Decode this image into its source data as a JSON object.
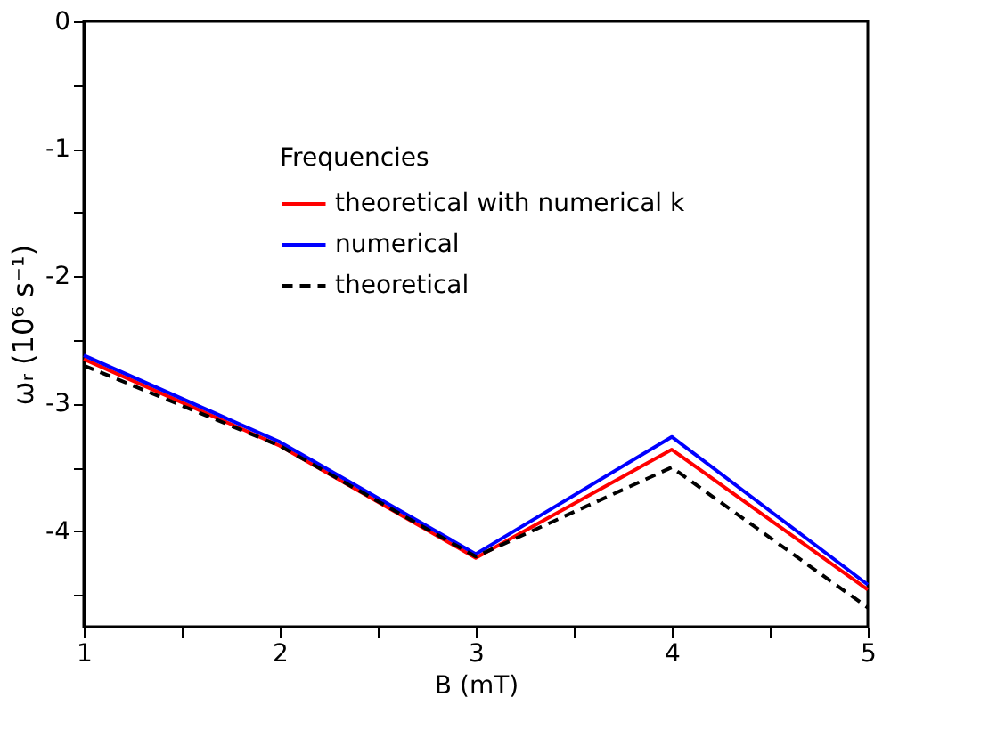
{
  "chart_data": {
    "type": "line",
    "xlabel": "B (mT)",
    "ylabel": "ωᵣ (10⁶ s⁻¹)",
    "legend_title": "Frequencies",
    "legend": "top",
    "grid": false,
    "marker": "none",
    "x": [
      1,
      2,
      3,
      4,
      5
    ],
    "xlim": [
      1,
      5
    ],
    "xticks": [
      1,
      {
        "value": 1.5,
        "label": null
      },
      2,
      {
        "value": 2.5,
        "label": null
      },
      3,
      {
        "value": 3.5,
        "label": null
      },
      4,
      {
        "value": 4.5,
        "label": null
      },
      5
    ],
    "ylim": [
      -4.75,
      0
    ],
    "yticks": [
      0,
      {
        "value": -0.5,
        "label": null
      },
      -1,
      {
        "value": -1.5,
        "label": null
      },
      -2,
      {
        "value": -2.5,
        "label": null
      },
      -3,
      {
        "value": -3.5,
        "label": null
      },
      -4,
      {
        "value": -4.5,
        "label": null
      }
    ],
    "series": [
      {
        "name": "theoretical with numerical k",
        "color": "#ff0000",
        "line_style": "solid",
        "values": [
          -2.65,
          -3.33,
          -4.21,
          -3.36,
          -4.46
        ]
      },
      {
        "name": "numerical",
        "color": "#0000ff",
        "line_style": "solid",
        "values": [
          -2.62,
          -3.3,
          -4.18,
          -3.26,
          -4.42
        ]
      },
      {
        "name": "theoretical",
        "color": "#000000",
        "line_style": "dashed",
        "values": [
          -2.7,
          -3.33,
          -4.2,
          -3.5,
          -4.6
        ]
      }
    ]
  }
}
